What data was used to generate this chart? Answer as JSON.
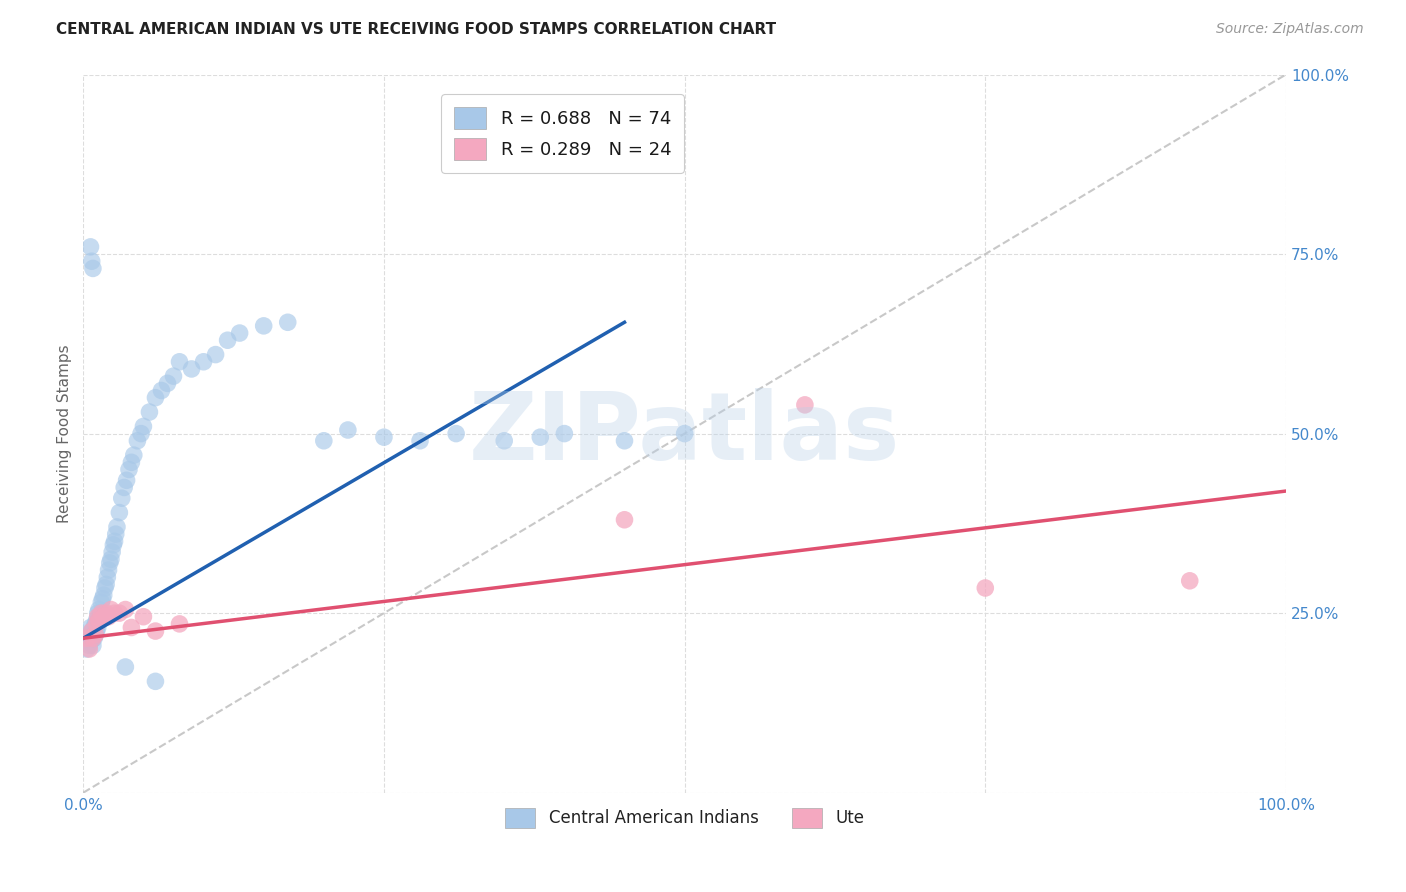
{
  "title": "CENTRAL AMERICAN INDIAN VS UTE RECEIVING FOOD STAMPS CORRELATION CHART",
  "source": "Source: ZipAtlas.com",
  "ylabel": "Receiving Food Stamps",
  "xlim": [
    0,
    1
  ],
  "ylim": [
    0,
    1
  ],
  "xticks": [
    0,
    0.25,
    0.5,
    0.75,
    1.0
  ],
  "yticks": [
    0,
    0.25,
    0.5,
    0.75,
    1.0
  ],
  "xticklabels": [
    "0.0%",
    "",
    "",
    "",
    "100.0%"
  ],
  "right_yticklabels": [
    "",
    "25.0%",
    "50.0%",
    "75.0%",
    "100.0%"
  ],
  "blue_color": "#a8c8e8",
  "pink_color": "#f4a8c0",
  "blue_line_color": "#2060b0",
  "pink_line_color": "#e05070",
  "diagonal_color": "#bbbbbb",
  "watermark_text": "ZIPatlas",
  "blue_line_x": [
    0.0,
    0.45
  ],
  "blue_line_y": [
    0.215,
    0.655
  ],
  "pink_line_x": [
    0.0,
    1.0
  ],
  "pink_line_y": [
    0.215,
    0.42
  ],
  "blue_scatter_x": [
    0.003,
    0.004,
    0.005,
    0.005,
    0.006,
    0.006,
    0.007,
    0.007,
    0.008,
    0.008,
    0.009,
    0.009,
    0.01,
    0.01,
    0.011,
    0.011,
    0.012,
    0.012,
    0.013,
    0.013,
    0.014,
    0.015,
    0.015,
    0.016,
    0.017,
    0.018,
    0.019,
    0.02,
    0.021,
    0.022,
    0.023,
    0.024,
    0.025,
    0.026,
    0.027,
    0.028,
    0.03,
    0.032,
    0.034,
    0.036,
    0.038,
    0.04,
    0.042,
    0.045,
    0.048,
    0.05,
    0.055,
    0.06,
    0.065,
    0.07,
    0.075,
    0.08,
    0.09,
    0.1,
    0.11,
    0.12,
    0.13,
    0.15,
    0.17,
    0.2,
    0.22,
    0.25,
    0.28,
    0.31,
    0.35,
    0.38,
    0.4,
    0.45,
    0.5,
    0.006,
    0.007,
    0.008,
    0.035,
    0.06
  ],
  "blue_scatter_y": [
    0.2,
    0.215,
    0.205,
    0.22,
    0.21,
    0.23,
    0.215,
    0.225,
    0.205,
    0.22,
    0.215,
    0.23,
    0.22,
    0.235,
    0.225,
    0.24,
    0.23,
    0.25,
    0.24,
    0.255,
    0.245,
    0.25,
    0.265,
    0.27,
    0.275,
    0.285,
    0.29,
    0.3,
    0.31,
    0.32,
    0.325,
    0.335,
    0.345,
    0.35,
    0.36,
    0.37,
    0.39,
    0.41,
    0.425,
    0.435,
    0.45,
    0.46,
    0.47,
    0.49,
    0.5,
    0.51,
    0.53,
    0.55,
    0.56,
    0.57,
    0.58,
    0.6,
    0.59,
    0.6,
    0.61,
    0.63,
    0.64,
    0.65,
    0.655,
    0.49,
    0.505,
    0.495,
    0.49,
    0.5,
    0.49,
    0.495,
    0.5,
    0.49,
    0.5,
    0.76,
    0.74,
    0.73,
    0.175,
    0.155
  ],
  "pink_scatter_x": [
    0.003,
    0.005,
    0.007,
    0.008,
    0.01,
    0.011,
    0.012,
    0.013,
    0.015,
    0.017,
    0.019,
    0.021,
    0.023,
    0.026,
    0.03,
    0.035,
    0.04,
    0.05,
    0.06,
    0.08,
    0.45,
    0.6,
    0.75,
    0.92
  ],
  "pink_scatter_y": [
    0.215,
    0.2,
    0.225,
    0.215,
    0.22,
    0.235,
    0.245,
    0.24,
    0.25,
    0.245,
    0.25,
    0.245,
    0.255,
    0.25,
    0.25,
    0.255,
    0.23,
    0.245,
    0.225,
    0.235,
    0.38,
    0.54,
    0.285,
    0.295
  ],
  "background_color": "#ffffff",
  "grid_color": "#dddddd",
  "title_fontsize": 11,
  "source_fontsize": 10,
  "tick_fontsize": 11,
  "ylabel_fontsize": 11,
  "legend_fontsize": 13,
  "watermark_fontsize": 68
}
